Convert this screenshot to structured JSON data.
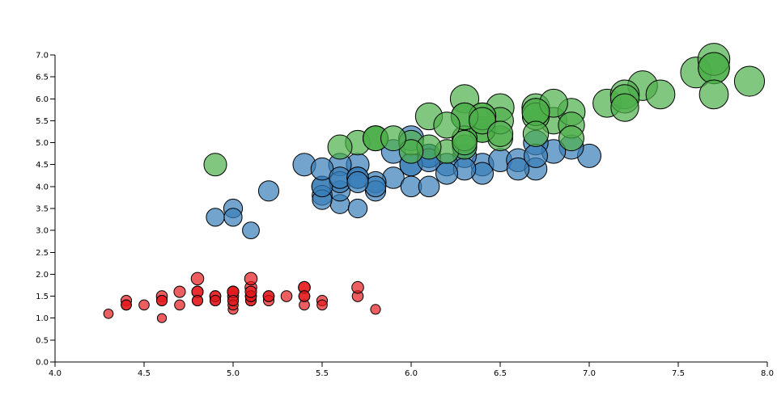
{
  "chart_data": {
    "type": "scatter",
    "title": "",
    "xlabel": "",
    "ylabel": "",
    "xlim": [
      4.0,
      8.0
    ],
    "ylim": [
      0.0,
      7.0
    ],
    "xticks": [
      "4.0",
      "4.5",
      "5.0",
      "5.5",
      "6.0",
      "6.5",
      "7.0",
      "7.5",
      "8.0"
    ],
    "yticks": [
      "0.0",
      "0.5",
      "1.0",
      "1.5",
      "2.0",
      "2.5",
      "3.0",
      "3.5",
      "4.0",
      "4.5",
      "5.0",
      "5.5",
      "6.0",
      "6.5",
      "7.0"
    ],
    "grid": false,
    "legend": "none",
    "encoding": "bubble size proportional to y value",
    "series": [
      {
        "color": "#e41a1c",
        "points": [
          [
            5.1,
            1.4
          ],
          [
            4.9,
            1.4
          ],
          [
            4.7,
            1.3
          ],
          [
            4.6,
            1.5
          ],
          [
            5.0,
            1.4
          ],
          [
            5.4,
            1.7
          ],
          [
            4.6,
            1.4
          ],
          [
            5.0,
            1.5
          ],
          [
            4.4,
            1.4
          ],
          [
            4.9,
            1.5
          ],
          [
            5.4,
            1.5
          ],
          [
            4.8,
            1.6
          ],
          [
            4.8,
            1.4
          ],
          [
            4.3,
            1.1
          ],
          [
            5.8,
            1.2
          ],
          [
            5.7,
            1.5
          ],
          [
            5.4,
            1.3
          ],
          [
            5.1,
            1.4
          ],
          [
            5.7,
            1.7
          ],
          [
            5.1,
            1.5
          ],
          [
            5.4,
            1.7
          ],
          [
            5.1,
            1.5
          ],
          [
            4.6,
            1.0
          ],
          [
            5.1,
            1.7
          ],
          [
            4.8,
            1.9
          ],
          [
            5.0,
            1.6
          ],
          [
            5.0,
            1.6
          ],
          [
            5.2,
            1.5
          ],
          [
            5.2,
            1.4
          ],
          [
            4.7,
            1.6
          ],
          [
            4.8,
            1.6
          ],
          [
            5.4,
            1.5
          ],
          [
            5.2,
            1.5
          ],
          [
            5.5,
            1.4
          ],
          [
            4.9,
            1.5
          ],
          [
            5.0,
            1.2
          ],
          [
            5.5,
            1.3
          ],
          [
            4.9,
            1.4
          ],
          [
            4.4,
            1.3
          ],
          [
            5.1,
            1.5
          ],
          [
            5.0,
            1.3
          ],
          [
            4.5,
            1.3
          ],
          [
            4.4,
            1.3
          ],
          [
            5.0,
            1.6
          ],
          [
            5.1,
            1.9
          ],
          [
            4.8,
            1.4
          ],
          [
            5.1,
            1.6
          ],
          [
            4.6,
            1.4
          ],
          [
            5.3,
            1.5
          ],
          [
            5.0,
            1.4
          ]
        ]
      },
      {
        "color": "#377eb8",
        "points": [
          [
            7.0,
            4.7
          ],
          [
            6.4,
            4.5
          ],
          [
            6.9,
            4.9
          ],
          [
            5.5,
            4.0
          ],
          [
            6.5,
            4.6
          ],
          [
            5.7,
            4.5
          ],
          [
            6.3,
            4.7
          ],
          [
            4.9,
            3.3
          ],
          [
            6.6,
            4.6
          ],
          [
            5.2,
            3.9
          ],
          [
            5.0,
            3.5
          ],
          [
            5.9,
            4.2
          ],
          [
            6.0,
            4.0
          ],
          [
            6.1,
            4.7
          ],
          [
            5.6,
            3.6
          ],
          [
            6.7,
            4.4
          ],
          [
            5.6,
            4.5
          ],
          [
            5.8,
            4.1
          ],
          [
            6.2,
            4.5
          ],
          [
            5.6,
            3.9
          ],
          [
            5.9,
            4.8
          ],
          [
            6.1,
            4.0
          ],
          [
            6.3,
            4.9
          ],
          [
            6.1,
            4.7
          ],
          [
            6.4,
            4.3
          ],
          [
            6.6,
            4.4
          ],
          [
            6.8,
            4.8
          ],
          [
            6.7,
            5.0
          ],
          [
            6.0,
            4.5
          ],
          [
            5.7,
            3.5
          ],
          [
            5.5,
            3.8
          ],
          [
            5.5,
            3.7
          ],
          [
            5.8,
            3.9
          ],
          [
            6.0,
            5.1
          ],
          [
            5.4,
            4.5
          ],
          [
            6.0,
            4.5
          ],
          [
            6.7,
            4.7
          ],
          [
            6.3,
            4.4
          ],
          [
            5.6,
            4.1
          ],
          [
            5.5,
            4.0
          ],
          [
            5.5,
            4.4
          ],
          [
            6.1,
            4.6
          ],
          [
            5.8,
            4.0
          ],
          [
            5.0,
            3.3
          ],
          [
            5.6,
            4.2
          ],
          [
            5.7,
            4.2
          ],
          [
            5.7,
            4.2
          ],
          [
            6.2,
            4.3
          ],
          [
            5.1,
            3.0
          ],
          [
            5.7,
            4.1
          ]
        ]
      },
      {
        "color": "#4daf4a",
        "points": [
          [
            6.3,
            6.0
          ],
          [
            5.8,
            5.1
          ],
          [
            7.1,
            5.9
          ],
          [
            6.3,
            5.6
          ],
          [
            6.5,
            5.8
          ],
          [
            7.6,
            6.6
          ],
          [
            4.9,
            4.5
          ],
          [
            7.3,
            6.3
          ],
          [
            6.7,
            5.8
          ],
          [
            7.2,
            6.1
          ],
          [
            6.5,
            5.1
          ],
          [
            6.4,
            5.3
          ],
          [
            6.8,
            5.5
          ],
          [
            5.7,
            5.0
          ],
          [
            5.8,
            5.1
          ],
          [
            6.4,
            5.3
          ],
          [
            6.5,
            5.5
          ],
          [
            7.7,
            6.7
          ],
          [
            7.7,
            6.9
          ],
          [
            6.0,
            5.0
          ],
          [
            6.9,
            5.7
          ],
          [
            5.6,
            4.9
          ],
          [
            7.7,
            6.7
          ],
          [
            6.3,
            4.9
          ],
          [
            6.7,
            5.7
          ],
          [
            7.2,
            6.0
          ],
          [
            6.2,
            4.8
          ],
          [
            6.1,
            4.9
          ],
          [
            6.4,
            5.6
          ],
          [
            7.2,
            5.8
          ],
          [
            7.4,
            6.1
          ],
          [
            7.9,
            6.4
          ],
          [
            6.4,
            5.6
          ],
          [
            6.3,
            5.1
          ],
          [
            6.1,
            5.6
          ],
          [
            7.7,
            6.1
          ],
          [
            6.3,
            5.6
          ],
          [
            6.4,
            5.5
          ],
          [
            6.0,
            4.8
          ],
          [
            6.9,
            5.4
          ],
          [
            6.7,
            5.6
          ],
          [
            6.9,
            5.1
          ],
          [
            5.8,
            5.1
          ],
          [
            6.8,
            5.9
          ],
          [
            6.7,
            5.7
          ],
          [
            6.7,
            5.2
          ],
          [
            6.3,
            5.0
          ],
          [
            6.5,
            5.2
          ],
          [
            6.2,
            5.4
          ],
          [
            5.9,
            5.1
          ]
        ]
      }
    ]
  }
}
